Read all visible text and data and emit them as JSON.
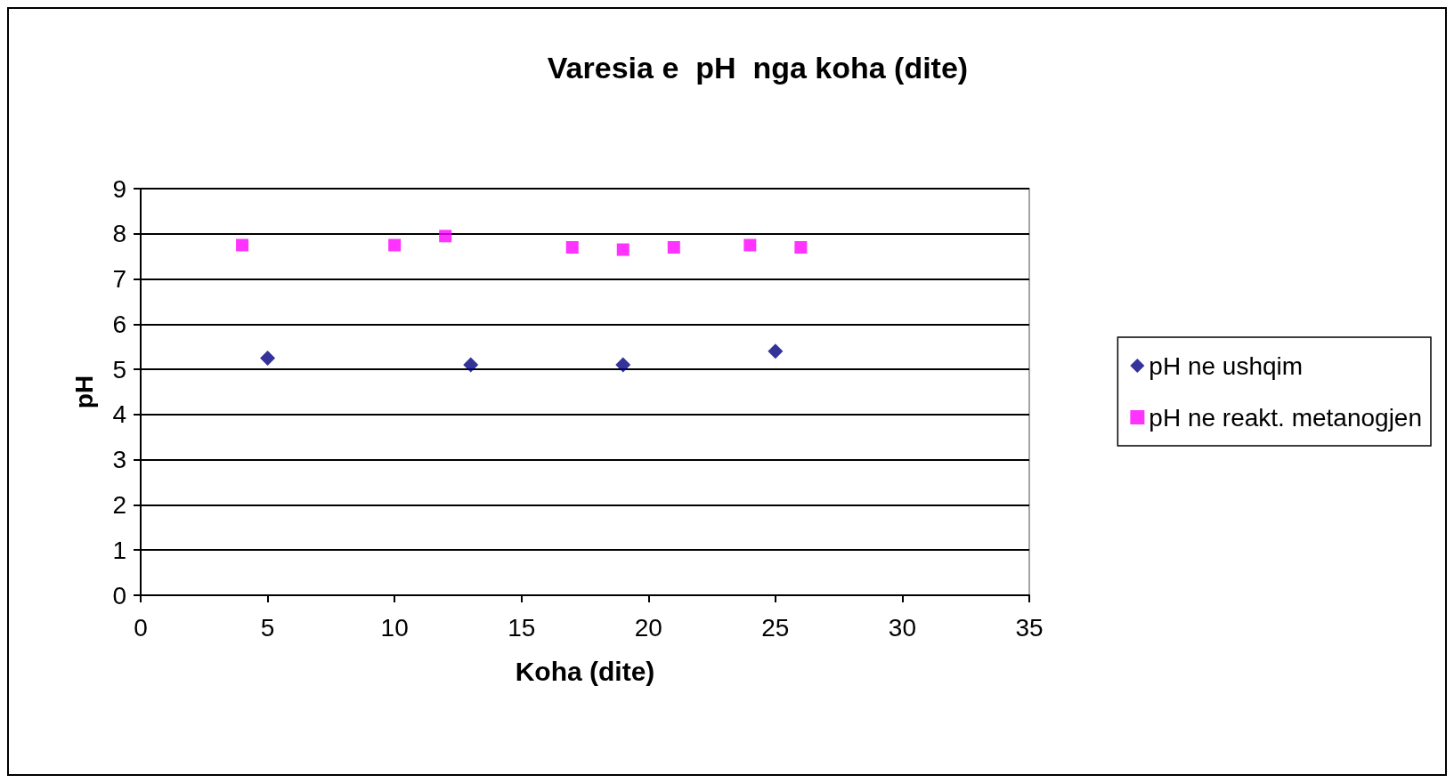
{
  "chart_data": {
    "type": "scatter",
    "title": "Varesia e  pH  nga koha (dite)",
    "xlabel": "Koha (dite)",
    "ylabel": "pH",
    "xlim": [
      0,
      35
    ],
    "xticks": [
      0,
      5,
      10,
      15,
      20,
      25,
      30,
      35
    ],
    "ylim": [
      0,
      9
    ],
    "yticks": [
      0,
      1,
      2,
      3,
      4,
      5,
      6,
      7,
      8,
      9
    ],
    "grid": "y",
    "legend": "right",
    "series": [
      {
        "name": "pH ne ushqim",
        "color": "#000080",
        "marker": "diamond",
        "x": [
          5,
          13,
          19,
          25
        ],
        "values": [
          5.25,
          5.1,
          5.1,
          5.4
        ]
      },
      {
        "name": "pH ne reakt. metanogjen",
        "color": "#ff00ff",
        "marker": "square",
        "x": [
          4,
          10,
          12,
          17,
          19,
          21,
          24,
          26
        ],
        "values": [
          7.75,
          7.75,
          7.95,
          7.7,
          7.65,
          7.7,
          7.75,
          7.7
        ]
      }
    ]
  }
}
